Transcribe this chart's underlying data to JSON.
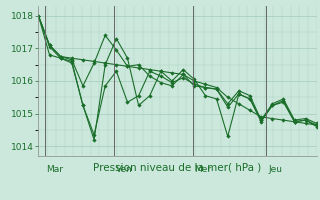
{
  "background_color": "#cce8dc",
  "grid_color": "#aacfbf",
  "line_color": "#1a6e2a",
  "xlabel": "Pression niveau de la mer( hPa )",
  "ylim": [
    1013.7,
    1018.3
  ],
  "yticks": [
    1014,
    1015,
    1016,
    1017,
    1018
  ],
  "day_positions": [
    0.18,
    2.18,
    4.43,
    6.55
  ],
  "day_labels": [
    "Mar",
    "Ven",
    "Mer",
    "Jeu"
  ],
  "xmin": 0.0,
  "xmax": 8.0,
  "series": [
    [
      1018.0,
      1017.1,
      1016.75,
      1016.65,
      1015.85,
      1016.55,
      1017.4,
      1016.95,
      1016.45,
      1016.5,
      1016.15,
      1015.95,
      1015.85,
      1016.2,
      1015.85,
      1015.8,
      1015.75,
      1015.3,
      1015.7,
      1015.55,
      1014.8,
      1015.3,
      1015.45,
      1014.8,
      1014.85,
      1014.7
    ],
    [
      1018.0,
      1017.05,
      1016.7,
      1016.6,
      1015.25,
      1014.35,
      1015.85,
      1016.3,
      1015.35,
      1015.55,
      1016.3,
      1016.15,
      1015.95,
      1016.1,
      1015.9,
      1015.8,
      1015.75,
      1015.2,
      1015.6,
      1015.45,
      1014.8,
      1015.25,
      1015.4,
      1014.75,
      1014.8,
      1014.65
    ],
    [
      1018.0,
      1016.8,
      1016.7,
      1016.55,
      1015.25,
      1014.2,
      1016.5,
      1017.3,
      1016.7,
      1015.25,
      1015.55,
      1016.3,
      1016.0,
      1016.35,
      1016.05,
      1015.55,
      1015.45,
      1014.3,
      1015.6,
      1015.45,
      1014.75,
      1015.25,
      1015.35,
      1014.75,
      1014.8,
      1014.6
    ],
    [
      1018.0,
      1017.1,
      1016.75,
      1016.7,
      1016.65,
      1016.6,
      1016.55,
      1016.5,
      1016.45,
      1016.4,
      1016.35,
      1016.3,
      1016.25,
      1016.2,
      1016.0,
      1015.9,
      1015.8,
      1015.5,
      1015.3,
      1015.1,
      1014.9,
      1014.85,
      1014.8,
      1014.75,
      1014.7,
      1014.65
    ]
  ],
  "n_points": 26
}
